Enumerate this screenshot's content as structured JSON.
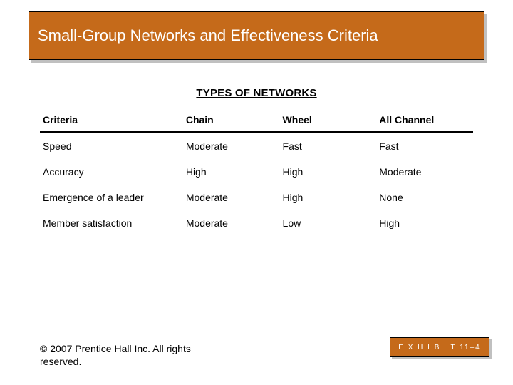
{
  "title": "Small-Group Networks and Effectiveness Criteria",
  "types_heading": "TYPES OF NETWORKS",
  "columns": {
    "criteria": "Criteria",
    "chain": "Chain",
    "wheel": "Wheel",
    "all_channel": "All Channel"
  },
  "rows": [
    {
      "criteria": "Speed",
      "chain": "Moderate",
      "wheel": "Fast",
      "all_channel": "Fast"
    },
    {
      "criteria": "Accuracy",
      "chain": "High",
      "wheel": "High",
      "all_channel": "Moderate"
    },
    {
      "criteria": "Emergence of a leader",
      "chain": "Moderate",
      "wheel": "High",
      "all_channel": "None"
    },
    {
      "criteria": "Member satisfaction",
      "chain": "Moderate",
      "wheel": "Low",
      "all_channel": "High"
    }
  ],
  "copyright": "© 2007 Prentice Hall Inc. All rights reserved.",
  "exhibit_label": "E X H I B I T 11–4",
  "colors": {
    "title_bg": "#c56a1a",
    "shadow": "#c0c0c0",
    "title_text": "#ffffff",
    "body_text": "#000000",
    "rule": "#000000",
    "page_bg": "#ffffff"
  }
}
